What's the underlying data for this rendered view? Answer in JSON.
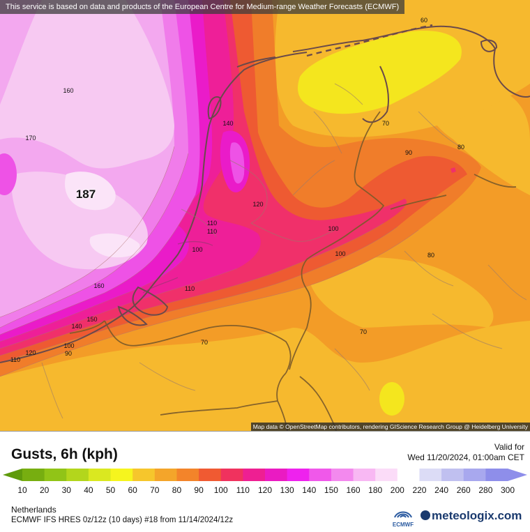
{
  "map": {
    "attribution_top": "This service is based on data and products of the European Centre for Medium-range Weather Forecasts (ECMWF)",
    "attribution_bottom": "Map data © OpenStreetMap contributors, rendering GIScience Research Group @ Heidelberg University",
    "max_label": "187",
    "contour_labels": [
      "60",
      "70",
      "90",
      "80",
      "160",
      "170",
      "140",
      "120",
      "110",
      "100",
      "110",
      "100",
      "100",
      "80",
      "160",
      "150",
      "110",
      "140",
      "100",
      "120",
      "90",
      "110",
      "70",
      "70"
    ],
    "colors": {
      "c70": "#f6b92e",
      "c80": "#f39c27",
      "c90": "#f07d2a",
      "c100": "#ee5a32",
      "c110": "#f0306a",
      "c120": "#ee1f98",
      "c130": "#ea1bc9",
      "c140": "#ee52e6",
      "c150": "#f07cea",
      "c160": "#f3a8ef",
      "c170": "#f7c9f2",
      "c180": "#fbe4f8",
      "c60": "#f4e61e",
      "border": "#7a5a2a",
      "coast": "#6a4a4a"
    }
  },
  "legend": {
    "title": "Gusts, 6h (kph)",
    "valid_label": "Valid for",
    "valid_time": "Wed 11/20/2024, 01:00am CET",
    "scale": [
      {
        "value": "10",
        "color": "#5f9a0c"
      },
      {
        "value": "20",
        "color": "#77ae10"
      },
      {
        "value": "30",
        "color": "#91c417"
      },
      {
        "value": "40",
        "color": "#b3d61c"
      },
      {
        "value": "50",
        "color": "#dae820"
      },
      {
        "value": "60",
        "color": "#f6f51e"
      },
      {
        "value": "70",
        "color": "#f6c62c"
      },
      {
        "value": "80",
        "color": "#f4a52a"
      },
      {
        "value": "90",
        "color": "#f3842a"
      },
      {
        "value": "100",
        "color": "#f05a32"
      },
      {
        "value": "110",
        "color": "#f0325e"
      },
      {
        "value": "120",
        "color": "#ee1f92"
      },
      {
        "value": "130",
        "color": "#ea1bc2"
      },
      {
        "value": "140",
        "color": "#ee22ee"
      },
      {
        "value": "150",
        "color": "#f058ea"
      },
      {
        "value": "160",
        "color": "#f389ee"
      },
      {
        "value": "180",
        "color": "#f8b8f3"
      },
      {
        "value": "200",
        "color": "#fbdcf8"
      },
      {
        "value": "220",
        "color": "#ffffff"
      },
      {
        "value": "240",
        "color": "#dcdcf6"
      },
      {
        "value": "260",
        "color": "#c0c0f0"
      },
      {
        "value": "280",
        "color": "#a8a8ee"
      },
      {
        "value": "300",
        "color": "#8e8eea"
      }
    ],
    "region": "Netherlands",
    "model_run": "ECMWF IFS HRES 0z/12z (10 days) #18 from  11/14/2024/12z",
    "ecmwf_logo_text": "ECMWF",
    "brand": "meteologix.com"
  }
}
